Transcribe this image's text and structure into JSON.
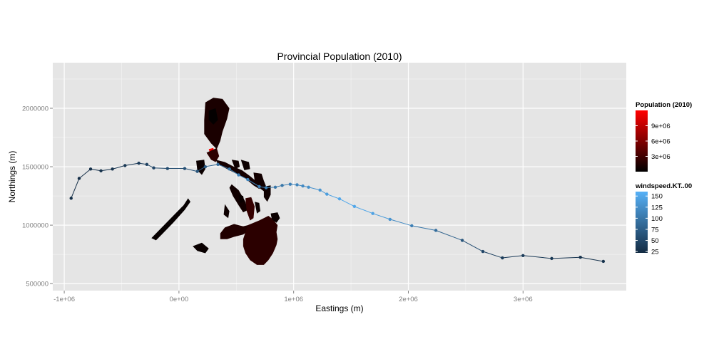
{
  "title": "Provincial Population (2010)",
  "x_axis": {
    "label": "Eastings (m)",
    "range": [
      -1100000,
      3900000
    ],
    "ticks": [
      {
        "value": -1000000,
        "label": "-1e+06"
      },
      {
        "value": 0,
        "label": "0e+00"
      },
      {
        "value": 1000000,
        "label": "1e+06"
      },
      {
        "value": 2000000,
        "label": "2e+06"
      },
      {
        "value": 3000000,
        "label": "3e+06"
      }
    ]
  },
  "y_axis": {
    "label": "Northings (m)",
    "range": [
      440000,
      2390000
    ],
    "ticks": [
      {
        "value": 500000,
        "label": "500000"
      },
      {
        "value": 1000000,
        "label": "1000000"
      },
      {
        "value": 1500000,
        "label": "1500000"
      },
      {
        "value": 2000000,
        "label": "2000000"
      }
    ]
  },
  "legend_population": {
    "title": "Population (2010)",
    "min": 0,
    "max": 12000000,
    "low_color": "#000000",
    "high_color": "#ff0000",
    "ticks": [
      {
        "value": 3000000,
        "label": "3e+06"
      },
      {
        "value": 6000000,
        "label": "6e+06"
      },
      {
        "value": 9000000,
        "label": "9e+06"
      }
    ]
  },
  "legend_windspeed": {
    "title": "windspeed.KT..00",
    "min": 22,
    "max": 160,
    "low_color": "#132b43",
    "high_color": "#56b1f7",
    "ticks": [
      {
        "value": 25,
        "label": "25"
      },
      {
        "value": 50,
        "label": "50"
      },
      {
        "value": 75,
        "label": "75"
      },
      {
        "value": 100,
        "label": "100"
      },
      {
        "value": 125,
        "label": "125"
      },
      {
        "value": 150,
        "label": "150"
      }
    ]
  },
  "colors": {
    "panel_background": "#e5e5e5",
    "grid": "#ffffff",
    "landmass": "#3a1308"
  },
  "chart_data": {
    "type": "map",
    "track": [
      {
        "x": 3700000,
        "y": 690000,
        "wind": 30
      },
      {
        "x": 3500000,
        "y": 725000,
        "wind": 30
      },
      {
        "x": 3250000,
        "y": 715000,
        "wind": 35
      },
      {
        "x": 3000000,
        "y": 740000,
        "wind": 40
      },
      {
        "x": 2820000,
        "y": 720000,
        "wind": 40
      },
      {
        "x": 2650000,
        "y": 775000,
        "wind": 50
      },
      {
        "x": 2470000,
        "y": 870000,
        "wind": 65
      },
      {
        "x": 2240000,
        "y": 955000,
        "wind": 90
      },
      {
        "x": 2030000,
        "y": 995000,
        "wind": 110
      },
      {
        "x": 1840000,
        "y": 1050000,
        "wind": 130
      },
      {
        "x": 1690000,
        "y": 1100000,
        "wind": 145
      },
      {
        "x": 1530000,
        "y": 1160000,
        "wind": 150
      },
      {
        "x": 1400000,
        "y": 1225000,
        "wind": 150
      },
      {
        "x": 1290000,
        "y": 1265000,
        "wind": 140
      },
      {
        "x": 1230000,
        "y": 1300000,
        "wind": 130
      },
      {
        "x": 1130000,
        "y": 1325000,
        "wind": 125
      },
      {
        "x": 1080000,
        "y": 1335000,
        "wind": 120
      },
      {
        "x": 1030000,
        "y": 1345000,
        "wind": 115
      },
      {
        "x": 970000,
        "y": 1350000,
        "wind": 110
      },
      {
        "x": 900000,
        "y": 1340000,
        "wind": 100
      },
      {
        "x": 840000,
        "y": 1325000,
        "wind": 100
      },
      {
        "x": 760000,
        "y": 1320000,
        "wind": 105
      },
      {
        "x": 700000,
        "y": 1330000,
        "wind": 110
      },
      {
        "x": 600000,
        "y": 1390000,
        "wind": 115
      },
      {
        "x": 520000,
        "y": 1430000,
        "wind": 110
      },
      {
        "x": 440000,
        "y": 1480000,
        "wind": 100
      },
      {
        "x": 340000,
        "y": 1520000,
        "wind": 90
      },
      {
        "x": 230000,
        "y": 1500000,
        "wind": 75
      },
      {
        "x": 160000,
        "y": 1460000,
        "wind": 65
      },
      {
        "x": 50000,
        "y": 1485000,
        "wind": 60
      },
      {
        "x": -100000,
        "y": 1485000,
        "wind": 55
      },
      {
        "x": -220000,
        "y": 1490000,
        "wind": 50
      },
      {
        "x": -280000,
        "y": 1520000,
        "wind": 45
      },
      {
        "x": -350000,
        "y": 1530000,
        "wind": 40
      },
      {
        "x": -470000,
        "y": 1510000,
        "wind": 35
      },
      {
        "x": -580000,
        "y": 1480000,
        "wind": 30
      },
      {
        "x": -680000,
        "y": 1465000,
        "wind": 28
      },
      {
        "x": -770000,
        "y": 1480000,
        "wind": 28
      },
      {
        "x": -870000,
        "y": 1400000,
        "wind": 25
      },
      {
        "x": -940000,
        "y": 1230000,
        "wind": 25
      }
    ],
    "provinces": [
      {
        "name": "",
        "population": 1200000,
        "points": [
          [
            230000,
            2050000
          ],
          [
            300000,
            2090000
          ],
          [
            380000,
            2080000
          ],
          [
            440000,
            2000000
          ],
          [
            420000,
            1910000
          ],
          [
            380000,
            1800000
          ],
          [
            360000,
            1720000
          ],
          [
            330000,
            1650000
          ],
          [
            280000,
            1700000
          ],
          [
            220000,
            1780000
          ],
          [
            220000,
            1900000
          ]
        ]
      },
      {
        "name": "",
        "population": 200000,
        "points": [
          [
            260000,
            1980000
          ],
          [
            320000,
            2000000
          ],
          [
            340000,
            1900000
          ],
          [
            300000,
            1860000
          ],
          [
            260000,
            1900000
          ]
        ]
      },
      {
        "name": "",
        "population": 11800000,
        "points": [
          [
            260000,
            1650000
          ],
          [
            300000,
            1660000
          ],
          [
            310000,
            1610000
          ],
          [
            280000,
            1590000
          ]
        ]
      },
      {
        "name": "",
        "population": 2000000,
        "points": [
          [
            240000,
            1620000
          ],
          [
            280000,
            1560000
          ],
          [
            320000,
            1540000
          ],
          [
            350000,
            1590000
          ],
          [
            330000,
            1660000
          ]
        ]
      },
      {
        "name": "",
        "population": 1000000,
        "points": [
          [
            320000,
            1560000
          ],
          [
            400000,
            1540000
          ],
          [
            480000,
            1500000
          ],
          [
            550000,
            1470000
          ],
          [
            620000,
            1420000
          ],
          [
            680000,
            1370000
          ],
          [
            720000,
            1340000
          ],
          [
            700000,
            1310000
          ],
          [
            650000,
            1340000
          ],
          [
            580000,
            1400000
          ],
          [
            500000,
            1440000
          ],
          [
            420000,
            1480000
          ],
          [
            340000,
            1520000
          ]
        ]
      },
      {
        "name": "",
        "population": 500000,
        "points": [
          [
            150000,
            1550000
          ],
          [
            220000,
            1560000
          ],
          [
            230000,
            1480000
          ],
          [
            200000,
            1430000
          ],
          [
            160000,
            1470000
          ]
        ]
      },
      {
        "name": "",
        "population": 700000,
        "points": [
          [
            460000,
            1560000
          ],
          [
            520000,
            1550000
          ],
          [
            530000,
            1500000
          ],
          [
            490000,
            1480000
          ]
        ]
      },
      {
        "name": "",
        "population": 600000,
        "points": [
          [
            540000,
            1560000
          ],
          [
            610000,
            1540000
          ],
          [
            620000,
            1480000
          ],
          [
            570000,
            1470000
          ]
        ]
      },
      {
        "name": "",
        "population": 900000,
        "points": [
          [
            650000,
            1450000
          ],
          [
            720000,
            1440000
          ],
          [
            740000,
            1380000
          ],
          [
            760000,
            1330000
          ],
          [
            740000,
            1290000
          ],
          [
            700000,
            1320000
          ],
          [
            660000,
            1380000
          ]
        ]
      },
      {
        "name": "",
        "population": 700000,
        "points": [
          [
            740000,
            1330000
          ],
          [
            800000,
            1340000
          ],
          [
            800000,
            1260000
          ],
          [
            770000,
            1200000
          ],
          [
            740000,
            1240000
          ]
        ]
      },
      {
        "name": "",
        "population": 800000,
        "points": [
          [
            460000,
            1350000
          ],
          [
            520000,
            1300000
          ],
          [
            580000,
            1200000
          ],
          [
            600000,
            1130000
          ],
          [
            560000,
            1110000
          ],
          [
            520000,
            1170000
          ],
          [
            470000,
            1250000
          ],
          [
            440000,
            1320000
          ]
        ]
      },
      {
        "name": "",
        "population": 600000,
        "points": [
          [
            400000,
            1180000
          ],
          [
            440000,
            1120000
          ],
          [
            430000,
            1060000
          ],
          [
            390000,
            1090000
          ]
        ]
      },
      {
        "name": "",
        "population": 2500000,
        "points": [
          [
            580000,
            1230000
          ],
          [
            630000,
            1240000
          ],
          [
            660000,
            1160000
          ],
          [
            650000,
            1060000
          ],
          [
            620000,
            1040000
          ],
          [
            590000,
            1120000
          ]
        ]
      },
      {
        "name": "",
        "population": 500000,
        "points": [
          [
            660000,
            1200000
          ],
          [
            700000,
            1190000
          ],
          [
            710000,
            1120000
          ],
          [
            680000,
            1100000
          ]
        ]
      },
      {
        "name": "",
        "population": 400000,
        "points": [
          [
            520000,
            1260000
          ],
          [
            560000,
            1250000
          ],
          [
            570000,
            1200000
          ],
          [
            530000,
            1190000
          ]
        ]
      },
      {
        "name": "",
        "population": 300000,
        "points": [
          [
            -240000,
            890000
          ],
          [
            -170000,
            960000
          ],
          [
            -60000,
            1070000
          ],
          [
            40000,
            1170000
          ],
          [
            80000,
            1230000
          ],
          [
            100000,
            1200000
          ],
          [
            50000,
            1130000
          ],
          [
            -50000,
            1020000
          ],
          [
            -150000,
            920000
          ],
          [
            -200000,
            870000
          ]
        ]
      },
      {
        "name": "",
        "population": 1500000,
        "points": [
          [
            400000,
            980000
          ],
          [
            480000,
            1010000
          ],
          [
            560000,
            990000
          ],
          [
            600000,
            1000000
          ],
          [
            620000,
            960000
          ],
          [
            560000,
            920000
          ],
          [
            480000,
            900000
          ],
          [
            420000,
            880000
          ],
          [
            360000,
            880000
          ],
          [
            360000,
            930000
          ]
        ]
      },
      {
        "name": "",
        "population": 2000000,
        "points": [
          [
            600000,
            1000000
          ],
          [
            700000,
            1040000
          ],
          [
            780000,
            1080000
          ],
          [
            820000,
            1050000
          ],
          [
            860000,
            1000000
          ],
          [
            850000,
            940000
          ],
          [
            860000,
            880000
          ],
          [
            850000,
            830000
          ],
          [
            820000,
            760000
          ],
          [
            780000,
            700000
          ],
          [
            740000,
            660000
          ],
          [
            680000,
            660000
          ],
          [
            620000,
            700000
          ],
          [
            580000,
            760000
          ],
          [
            560000,
            820000
          ],
          [
            560000,
            880000
          ],
          [
            580000,
            940000
          ]
        ]
      },
      {
        "name": "",
        "population": 500000,
        "points": [
          [
            800000,
            1100000
          ],
          [
            860000,
            1110000
          ],
          [
            880000,
            1060000
          ],
          [
            850000,
            1020000
          ],
          [
            810000,
            1050000
          ]
        ]
      },
      {
        "name": "",
        "population": 400000,
        "points": [
          [
            120000,
            820000
          ],
          [
            200000,
            850000
          ],
          [
            260000,
            800000
          ],
          [
            230000,
            760000
          ],
          [
            160000,
            780000
          ]
        ]
      }
    ]
  }
}
